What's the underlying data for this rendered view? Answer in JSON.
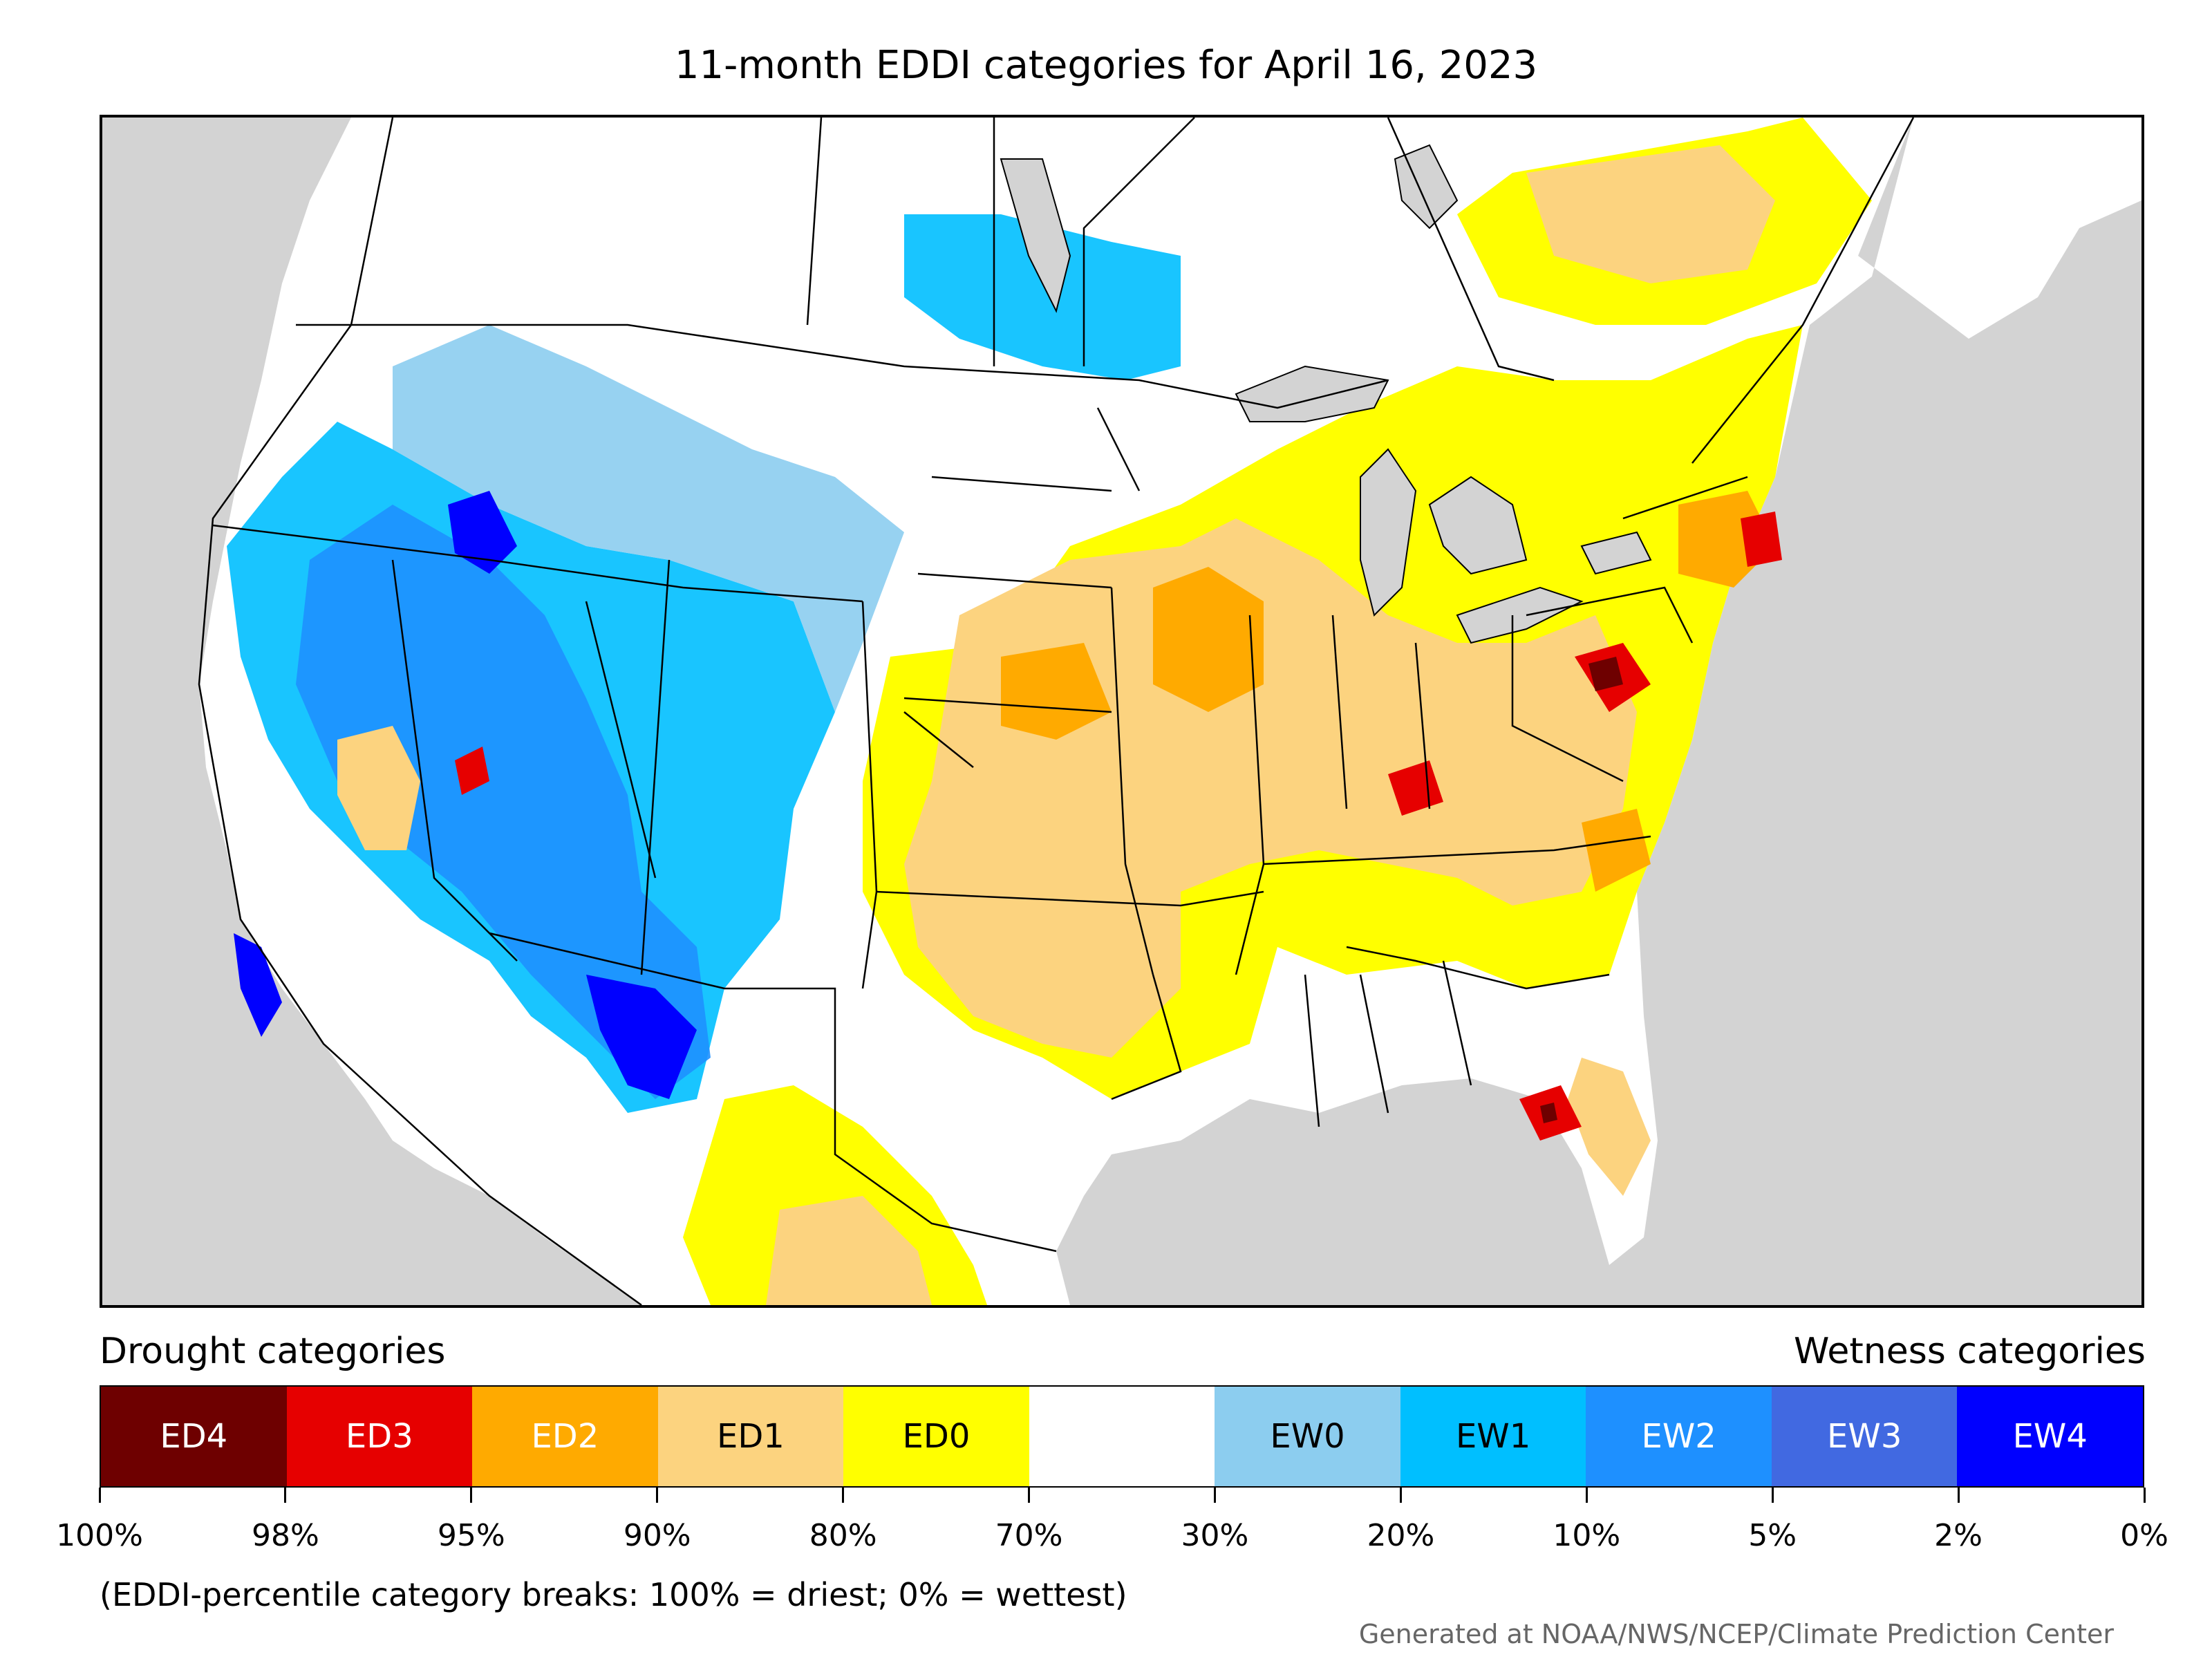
{
  "title": "11-month EDDI categories for April 16, 2023",
  "legend": {
    "drought_heading": "Drought categories",
    "wetness_heading": "Wetness categories",
    "categories": [
      {
        "label": "ED4",
        "color": "#6e0000",
        "text_color": "#ffffff"
      },
      {
        "label": "ED3",
        "color": "#e60000",
        "text_color": "#ffffff"
      },
      {
        "label": "ED2",
        "color": "#ffaa00",
        "text_color": "#ffffff"
      },
      {
        "label": "ED1",
        "color": "#fcd37f",
        "text_color": "#000000"
      },
      {
        "label": "ED0",
        "color": "#ffff00",
        "text_color": "#000000"
      },
      {
        "label": "",
        "color": "#ffffff",
        "text_color": "#000000"
      },
      {
        "label": "EW0",
        "color": "#8ccdef",
        "text_color": "#000000"
      },
      {
        "label": "EW1",
        "color": "#00bfff",
        "text_color": "#000000"
      },
      {
        "label": "EW2",
        "color": "#1e90ff",
        "text_color": "#ffffff"
      },
      {
        "label": "EW3",
        "color": "#4169e1",
        "text_color": "#ffffff"
      },
      {
        "label": "EW4",
        "color": "#0000ff",
        "text_color": "#ffffff"
      }
    ],
    "tick_labels": [
      "100%",
      "98%",
      "95%",
      "90%",
      "80%",
      "70%",
      "30%",
      "20%",
      "10%",
      "5%",
      "2%",
      "0%"
    ]
  },
  "note": "(EDDI-percentile category breaks: 100% = driest; 0% = wettest)",
  "credit": "Generated at NOAA/NWS/NCEP/Climate Prediction Center",
  "colors": {
    "ocean": "#d3d3d3",
    "lake": "#d3d3d3",
    "border": "#000000"
  }
}
